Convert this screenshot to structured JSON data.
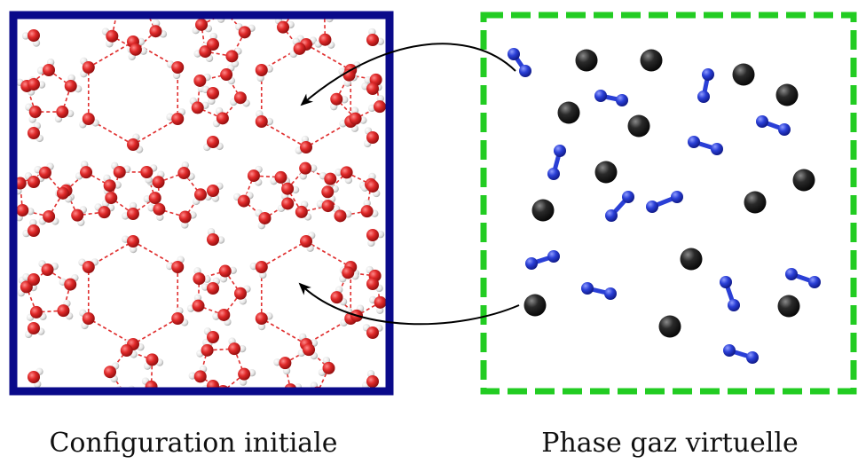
{
  "captions": {
    "left": "Configuration initiale",
    "right": "Phase gaz virtuelle"
  },
  "colors": {
    "frame_left": "#0a0a8a",
    "frame_right": "#22cc22",
    "oxygen": "#d42020",
    "hydrogen": "#e4e4e4",
    "hbond": "#e03030",
    "guest_atom": "#1a1a1a",
    "guest_molecule": "#2a3fd6",
    "arrow": "#000000"
  },
  "left_panel": {
    "content": "clathrate-hydrate-lattice"
  },
  "right_panel": {
    "content": "guest-gas-particles"
  }
}
